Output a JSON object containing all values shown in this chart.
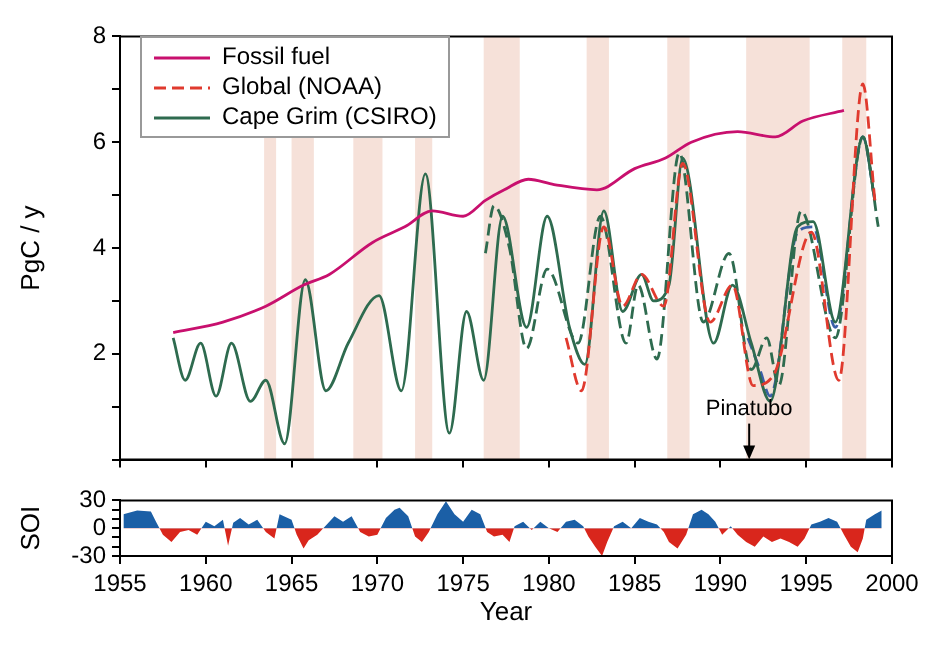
{
  "chart_data": [
    {
      "type": "line",
      "ylabel": "PgC / y",
      "xlim": [
        1955,
        2000
      ],
      "xticks": [
        1955,
        1960,
        1965,
        1970,
        1975,
        1980,
        1985,
        1990,
        1995,
        2000
      ],
      "ylim": [
        0,
        8
      ],
      "yticks": [
        {
          "value": 0,
          "label": null
        },
        {
          "value": 1,
          "label": null
        },
        2,
        {
          "value": 3,
          "label": null
        },
        4,
        {
          "value": 5,
          "label": null
        },
        6,
        {
          "value": 7,
          "label": null
        },
        8
      ],
      "tick_labels": "y",
      "grid": false,
      "marker": "none",
      "legend": "top left",
      "series": [
        {
          "name": "Fossil fuel",
          "color": "#c8106e",
          "line_style": "solid",
          "x": [
            1958.1,
            1961,
            1963.5,
            1965.7,
            1967.2,
            1969.7,
            1971.6,
            1973.2,
            1975,
            1976.3,
            1977.4,
            1978.8,
            1980.3,
            1982.8,
            1985,
            1986.8,
            1988.3,
            1991,
            1993.2,
            1994.8,
            1997.2
          ],
          "values": [
            2.4,
            2.6,
            2.9,
            3.3,
            3.5,
            4.1,
            4.4,
            4.7,
            4.6,
            4.9,
            5.1,
            5.3,
            5.2,
            5.1,
            5.5,
            5.7,
            6.0,
            6.2,
            6.1,
            6.4,
            6.6
          ]
        },
        {
          "name": "Global (NOAA)",
          "color": "#e03a2e",
          "line_style": "dashed",
          "x": [
            1981,
            1981.9,
            1983.2,
            1984.3,
            1985.4,
            1986.7,
            1987.8,
            1989.4,
            1990.7,
            1991.9,
            1993.1,
            1995.3,
            1996.9,
            1998.3,
            1999
          ],
          "values": [
            2.3,
            1.3,
            4.4,
            2.9,
            3.5,
            2.9,
            5.6,
            2.6,
            3.3,
            1.4,
            1.6,
            4.3,
            1.5,
            7.1,
            4.9
          ]
        },
        {
          "name": "Cape Grim (CSIRO)",
          "color": "#2e6b4f",
          "line_style": "solid",
          "x": [
            1958.1,
            1958.8,
            1959.7,
            1960.6,
            1961.5,
            1962.6,
            1963.5,
            1964.6,
            1965.8,
            1967,
            1968.3,
            1970.1,
            1971.4,
            1972.8,
            1974.2,
            1975.2,
            1976.2,
            1977.3,
            1978.7,
            1979.9,
            1981.2,
            1982.1,
            1983.2,
            1984.3,
            1985.4,
            1986.1,
            1987,
            1987.8,
            1989.6,
            1990.7,
            1991.8,
            1992.9,
            1994.5,
            1995.4,
            1996.7,
            1998.3,
            1999
          ],
          "values": [
            2.3,
            1.5,
            2.2,
            1.2,
            2.2,
            1.1,
            1.5,
            0.3,
            3.4,
            1.3,
            2.2,
            3.1,
            1.3,
            5.4,
            0.5,
            2.8,
            1.5,
            4.6,
            2.5,
            4.6,
            2.5,
            1.8,
            4.7,
            2.8,
            3.5,
            3.0,
            3.3,
            5.7,
            2.2,
            3.3,
            2.2,
            1.1,
            4.4,
            4.5,
            2.6,
            6.1,
            4.9
          ]
        },
        {
          "color": "#2e6b4f",
          "line_style": "dashed",
          "x": [
            1976.3,
            1976.8,
            1977.7,
            1978.7,
            1979.9,
            1981.7,
            1983,
            1984.5,
            1985.2,
            1986.3,
            1987.6,
            1989,
            1990.5,
            1991.8,
            1992.7,
            1993.4,
            1994.7,
            1996.7,
            1998.3,
            1999.2
          ],
          "values": [
            3.9,
            4.8,
            4.0,
            2.1,
            3.6,
            2.2,
            4.6,
            2.2,
            3.3,
            1.9,
            5.8,
            2.6,
            3.9,
            1.7,
            2.3,
            1.4,
            4.7,
            2.3,
            6.1,
            4.4
          ]
        },
        {
          "color": "#3a5fa8",
          "line_style": "dashed",
          "x": [
            1991.6,
            1992.3,
            1992.9,
            1994.5,
            1995.4,
            1996.7,
            1998.3,
            1999
          ],
          "values": [
            2.3,
            1.7,
            1.2,
            4.3,
            4.4,
            2.5,
            6.1,
            4.9
          ]
        }
      ],
      "bands": [
        {
          "axis": "x",
          "from": 1963.4,
          "to": 1964.1,
          "color": "#f6e1d9"
        },
        {
          "axis": "x",
          "from": 1965.0,
          "to": 1966.3,
          "color": "#f6e1d9"
        },
        {
          "axis": "x",
          "from": 1968.6,
          "to": 1970.3,
          "color": "#f6e1d9"
        },
        {
          "axis": "x",
          "from": 1972.2,
          "to": 1973.2,
          "color": "#f6e1d9"
        },
        {
          "axis": "x",
          "from": 1976.2,
          "to": 1978.3,
          "color": "#f6e1d9"
        },
        {
          "axis": "x",
          "from": 1982.2,
          "to": 1983.5,
          "color": "#f6e1d9"
        },
        {
          "axis": "x",
          "from": 1986.9,
          "to": 1988.2,
          "color": "#f6e1d9"
        },
        {
          "axis": "x",
          "from": 1991.5,
          "to": 1995.2,
          "color": "#f6e1d9"
        },
        {
          "axis": "x",
          "from": 1997.1,
          "to": 1998.5,
          "color": "#f6e1d9"
        }
      ],
      "annotations": [
        "Pinatubo"
      ]
    },
    {
      "type": "area",
      "ylabel": "SOI",
      "xlabel": "Year",
      "xlim": [
        1955,
        2000
      ],
      "xticks": [
        1955,
        1960,
        1965,
        1970,
        1975,
        1980,
        1985,
        1990,
        1995,
        2000
      ],
      "ylim": [
        -30,
        30
      ],
      "yticks": [
        -30,
        {
          "value": -20,
          "label": null
        },
        {
          "value": -10,
          "label": null
        },
        0,
        {
          "value": 10,
          "label": null
        },
        {
          "value": 20,
          "label": null
        },
        30
      ],
      "grid": false,
      "marker": "none",
      "series": [
        {
          "colors": [
            "#1b5fa6",
            "#1b5fa6",
            "#1b5fa6",
            "#1b5fa6",
            "#d9261c",
            "#d9261c",
            "#d9261c",
            "#d9261c",
            "#d9261c",
            "#1b5fa6",
            "#1b5fa6",
            "#1b5fa6",
            "#d9261c",
            "#1b5fa6",
            "#1b5fa6",
            "#1b5fa6",
            "#1b5fa6",
            "#d9261c",
            "#d9261c",
            "#1b5fa6",
            "#1b5fa6",
            "#d9261c",
            "#d9261c",
            "#d9261c",
            "#d9261c",
            "#1b5fa6",
            "#1b5fa6",
            "#1b5fa6",
            "#1b5fa6",
            "#d9261c",
            "#d9261c",
            "#d9261c",
            "#1b5fa6",
            "#1b5fa6",
            "#1b5fa6",
            "#1b5fa6",
            "#d9261c",
            "#d9261c",
            "#d9261c",
            "#1b5fa6",
            "#1b5fa6",
            "#1b5fa6",
            "#1b5fa6",
            "#1b5fa6",
            "#1b5fa6",
            "#d9261c",
            "#d9261c",
            "#d9261c",
            "#d9261c",
            "#1b5fa6",
            "#1b5fa6",
            "#d9261c",
            "#1b5fa6",
            "#1b5fa6",
            "#d9261c",
            "#1b5fa6",
            "#1b5fa6",
            "#1b5fa6",
            "#d9261c",
            "#d9261c",
            "#d9261c",
            "#d9261c",
            "#1b5fa6",
            "#1b5fa6",
            "#1b5fa6",
            "#1b5fa6",
            "#1b5fa6",
            "#1b5fa6",
            "#d9261c",
            "#d9261c",
            "#d9261c",
            "#d9261c",
            "#1b5fa6",
            "#1b5fa6",
            "#1b5fa6",
            "#1b5fa6",
            "#d9261c",
            "#1b5fa6",
            "#d9261c",
            "#d9261c",
            "#d9261c",
            "#d9261c",
            "#d9261c",
            "#d9261c",
            "#d9261c",
            "#d9261c",
            "#d9261c",
            "#1b5fa6",
            "#1b5fa6",
            "#1b5fa6",
            "#1b5fa6",
            "#d9261c",
            "#d9261c",
            "#d9261c",
            "#d9261c",
            "#1b5fa6",
            "#1b5fa6",
            "#1b5fa6"
          ],
          "x": [
            1955.2,
            1956,
            1956.8,
            1957.1,
            1957.5,
            1958,
            1958.5,
            1959,
            1959.5,
            1960,
            1960.5,
            1961,
            1961.3,
            1961.6,
            1962,
            1962.5,
            1963,
            1963.5,
            1964,
            1964.3,
            1965,
            1965.3,
            1965.7,
            1966,
            1966.5,
            1967,
            1967.5,
            1968,
            1968.5,
            1969,
            1969.5,
            1970,
            1970.5,
            1971,
            1971.3,
            1971.8,
            1972.2,
            1972.6,
            1973,
            1973.5,
            1974,
            1974.5,
            1975,
            1975.5,
            1976,
            1976.4,
            1976.8,
            1977.3,
            1977.7,
            1978,
            1978.5,
            1979,
            1979.5,
            1980,
            1980.5,
            1981,
            1981.5,
            1982,
            1982.3,
            1982.7,
            1983.1,
            1983.4,
            1983.8,
            1984.3,
            1984.8,
            1985.3,
            1985.8,
            1986.3,
            1986.7,
            1987,
            1987.5,
            1988,
            1988.4,
            1988.9,
            1989.3,
            1989.7,
            1990.1,
            1990.6,
            1991,
            1991.5,
            1992,
            1992.5,
            1993,
            1993.5,
            1994,
            1994.5,
            1994.9,
            1995.3,
            1995.8,
            1996.3,
            1996.8,
            1997.2,
            1997.6,
            1998,
            1998.3,
            1998.5,
            1999,
            1999.4
          ],
          "values": [
            15,
            19,
            18,
            7,
            -7,
            -15,
            -4,
            -2,
            -7,
            7,
            2,
            9,
            -19,
            6,
            11,
            4,
            9,
            -4,
            -11,
            15,
            9,
            -7,
            -22,
            -13,
            -7,
            3,
            13,
            7,
            13,
            -4,
            -9,
            -7,
            11,
            20,
            22,
            13,
            -9,
            -15,
            -4,
            15,
            29,
            15,
            7,
            20,
            15,
            -4,
            -9,
            -7,
            -15,
            2,
            7,
            -2,
            7,
            0,
            -4,
            7,
            9,
            2,
            -9,
            -20,
            -30,
            -15,
            2,
            7,
            0,
            11,
            7,
            4,
            -4,
            -15,
            -22,
            -7,
            15,
            20,
            15,
            7,
            -7,
            2,
            -7,
            -15,
            -20,
            -9,
            -15,
            -11,
            -15,
            -20,
            -11,
            4,
            7,
            11,
            7,
            -7,
            -20,
            -26,
            -11,
            9,
            15,
            19
          ]
        }
      ]
    }
  ]
}
